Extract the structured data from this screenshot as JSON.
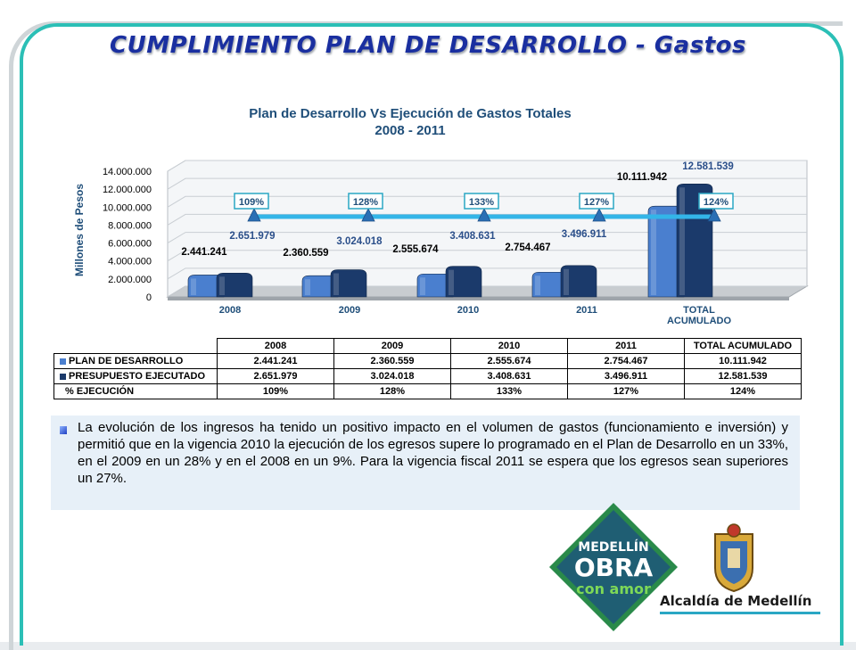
{
  "slide": {
    "title": "CUMPLIMIENTO PLAN DE DESARROLLO - Gastos"
  },
  "chart_data": {
    "type": "bar",
    "title": "Plan de Desarrollo Vs Ejecución de Gastos Totales",
    "subtitle": "2008 - 2011",
    "ylabel": "Millones de Pesos",
    "ylim": [
      0,
      14000000
    ],
    "yticks": [
      "0",
      "2.000.000",
      "4.000.000",
      "6.000.000",
      "8.000.000",
      "10.000.000",
      "12.000.000",
      "14.000.000"
    ],
    "categories": [
      "2008",
      "2009",
      "2010",
      "2011",
      "TOTAL ACUMULADO"
    ],
    "category_lines": [
      [
        "2008"
      ],
      [
        "2009"
      ],
      [
        "2010"
      ],
      [
        "2011"
      ],
      [
        "TOTAL",
        "ACUMULADO"
      ]
    ],
    "series": [
      {
        "name": "PLAN DE DESARROLLO",
        "color": "#4a7fcf",
        "values": [
          2441241,
          2360559,
          2555674,
          2754467,
          10111942
        ],
        "labels": [
          "2.441.241",
          "2.360.559",
          "2.555.674",
          "2.754.467",
          "10.111.942"
        ]
      },
      {
        "name": "PRESUPUESTO EJECUTADO",
        "color": "#1b3a6b",
        "values": [
          2651979,
          3024018,
          3408631,
          3496911,
          12581539
        ],
        "labels": [
          "2.651.979",
          "3.024.018",
          "3.408.631",
          "3.496.911",
          "12.581.539"
        ]
      }
    ],
    "execution": {
      "name": "% EJECUCIÓN",
      "values": [
        109,
        128,
        133,
        127,
        124
      ],
      "labels": [
        "109%",
        "128%",
        "133%",
        "127%",
        "124%"
      ]
    },
    "grid": true,
    "legend": "table below chart",
    "table": {
      "headers": [
        "2008",
        "2009",
        "2010",
        "2011",
        "TOTAL ACUMULADO"
      ]
    }
  },
  "text": {
    "paragraph": "La evolución de los ingresos ha tenido un positivo impacto en el volumen de gastos (funcionamiento e inversión) y permitió que en la vigencia 2010 la ejecución de los egresos supere lo programado en el Plan de Desarrollo en un 33%, en el 2009 en un 28%  y en el 2008 en un 9%. Para la vigencia fiscal 2011 se espera que los egresos sean superiores un 27%."
  },
  "logo": {
    "line1": "MEDELLÍN",
    "line2": "OBRA",
    "line3": "con amor",
    "alcaldia": "Alcaldía de Medellín"
  },
  "colors": {
    "title": "#1a2fa0",
    "accent": "#2bbfb6",
    "plan": "#4a7fcf",
    "ejecutado": "#1b3a6b",
    "line": "#33b5e8"
  }
}
